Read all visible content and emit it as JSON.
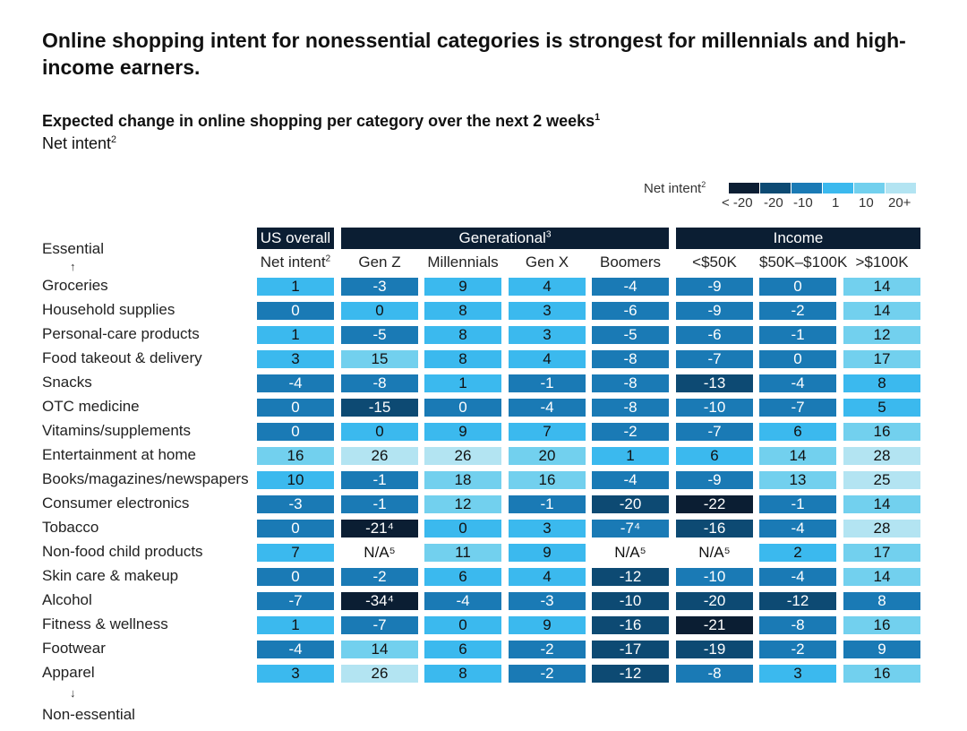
{
  "chart_data": {
    "type": "heatmap",
    "title": "Online shopping intent for nonessential categories is strongest for millennials and high-income earners.",
    "subtitle": "Expected change in online shopping per category over the next 2 weeks",
    "subtitle_sup": "1",
    "measure": "Net intent",
    "measure_sup": "2",
    "legend": {
      "title": "Net intent",
      "title_sup": "2",
      "labels": [
        "< -20",
        "-20",
        "-10",
        "1",
        "10",
        "20+"
      ],
      "colors": [
        "#0b1e33",
        "#0d4a73",
        "#1a7ab5",
        "#3bb9ee",
        "#72d0ee",
        "#b3e4f2"
      ],
      "placement": "top-right"
    },
    "groups": [
      {
        "label": "US overall",
        "sup": ""
      },
      {
        "label": "Generational",
        "sup": "3"
      },
      {
        "label": "Income",
        "sup": ""
      }
    ],
    "columns": [
      {
        "label": "Net intent",
        "sup": "2"
      },
      {
        "label": "Gen Z",
        "sup": ""
      },
      {
        "label": "Millennials",
        "sup": ""
      },
      {
        "label": "Gen X",
        "sup": ""
      },
      {
        "label": "Boomers",
        "sup": ""
      },
      {
        "label": "<$50K",
        "sup": ""
      },
      {
        "label": "$50K–$100K",
        "sup": ""
      },
      {
        "label": ">$100K",
        "sup": ""
      }
    ],
    "axis_top": "Essential",
    "axis_bottom": "Non-essential",
    "rows": [
      {
        "label": "Groceries",
        "values": [
          "1",
          "-3",
          "9",
          "4",
          "-4",
          "-9",
          "0",
          "14"
        ],
        "levels": [
          3,
          2,
          3,
          3,
          2,
          2,
          2,
          4
        ]
      },
      {
        "label": "Household supplies",
        "values": [
          "0",
          "0",
          "8",
          "3",
          "-6",
          "-9",
          "-2",
          "14"
        ],
        "levels": [
          2,
          3,
          3,
          3,
          2,
          2,
          2,
          4
        ]
      },
      {
        "label": "Personal-care products",
        "values": [
          "1",
          "-5",
          "8",
          "3",
          "-5",
          "-6",
          "-1",
          "12"
        ],
        "levels": [
          3,
          2,
          3,
          3,
          2,
          2,
          2,
          4
        ]
      },
      {
        "label": "Food takeout & delivery",
        "values": [
          "3",
          "15",
          "8",
          "4",
          "-8",
          "-7",
          "0",
          "17"
        ],
        "levels": [
          3,
          4,
          3,
          3,
          2,
          2,
          2,
          4
        ]
      },
      {
        "label": "Snacks",
        "values": [
          "-4",
          "-8",
          "1",
          "-1",
          "-8",
          "-13",
          "-4",
          "8"
        ],
        "levels": [
          2,
          2,
          3,
          2,
          2,
          1,
          2,
          3
        ]
      },
      {
        "label": "OTC medicine",
        "values": [
          "0",
          "-15",
          "0",
          "-4",
          "-8",
          "-10",
          "-7",
          "5"
        ],
        "levels": [
          2,
          1,
          2,
          2,
          2,
          2,
          2,
          3
        ]
      },
      {
        "label": "Vitamins/supplements",
        "values": [
          "0",
          "0",
          "9",
          "7",
          "-2",
          "-7",
          "6",
          "16"
        ],
        "levels": [
          2,
          3,
          3,
          3,
          2,
          2,
          3,
          4
        ]
      },
      {
        "label": "Entertainment at home",
        "values": [
          "16",
          "26",
          "26",
          "20",
          "1",
          "6",
          "14",
          "28"
        ],
        "levels": [
          4,
          5,
          5,
          4,
          3,
          3,
          4,
          5
        ]
      },
      {
        "label": "Books/magazines/newspapers",
        "values": [
          "10",
          "-1",
          "18",
          "16",
          "-4",
          "-9",
          "13",
          "25"
        ],
        "levels": [
          3,
          2,
          4,
          4,
          2,
          2,
          4,
          5
        ]
      },
      {
        "label": "Consumer electronics",
        "values": [
          "-3",
          "-1",
          "12",
          "-1",
          "-20",
          "-22",
          "-1",
          "14"
        ],
        "levels": [
          2,
          2,
          4,
          2,
          1,
          0,
          2,
          4
        ]
      },
      {
        "label": "Tobacco",
        "values": [
          "0",
          "-21⁴",
          "0",
          "3",
          "-7⁴",
          "-16",
          "-4",
          "28"
        ],
        "levels": [
          2,
          0,
          3,
          3,
          2,
          1,
          2,
          5
        ]
      },
      {
        "label": "Non-food child products",
        "values": [
          "7",
          "N/A⁵",
          "11",
          "9",
          "N/A⁵",
          "N/A⁵",
          "2",
          "17"
        ],
        "levels": [
          3,
          -1,
          4,
          3,
          -1,
          -1,
          3,
          4
        ]
      },
      {
        "label": "Skin care & makeup",
        "values": [
          "0",
          "-2",
          "6",
          "4",
          "-12",
          "-10",
          "-4",
          "14"
        ],
        "levels": [
          2,
          2,
          3,
          3,
          1,
          2,
          2,
          4
        ]
      },
      {
        "label": "Alcohol",
        "values": [
          "-7",
          "-34⁴",
          "-4",
          "-3",
          "-10",
          "-20",
          "-12",
          "8"
        ],
        "levels": [
          2,
          0,
          2,
          2,
          1,
          1,
          1,
          2
        ]
      },
      {
        "label": "Fitness & wellness",
        "values": [
          "1",
          "-7",
          "0",
          "9",
          "-16",
          "-21",
          "-8",
          "16"
        ],
        "levels": [
          3,
          2,
          3,
          3,
          1,
          0,
          2,
          4
        ]
      },
      {
        "label": "Footwear",
        "values": [
          "-4",
          "14",
          "6",
          "-2",
          "-17",
          "-19",
          "-2",
          "9"
        ],
        "levels": [
          2,
          4,
          3,
          2,
          1,
          1,
          2,
          2
        ]
      },
      {
        "label": "Apparel",
        "values": [
          "3",
          "26",
          "8",
          "-2",
          "-12",
          "-8",
          "3",
          "16"
        ],
        "levels": [
          3,
          5,
          3,
          2,
          1,
          2,
          3,
          4
        ]
      }
    ]
  }
}
